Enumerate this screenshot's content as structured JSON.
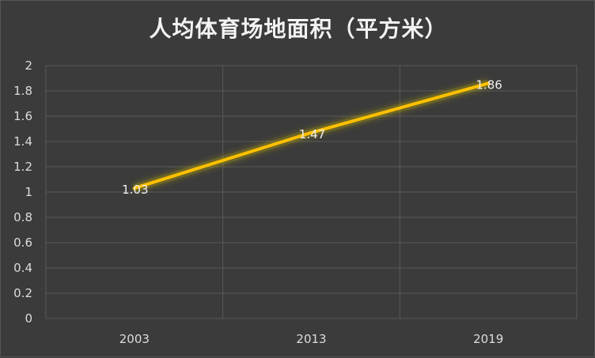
{
  "chart_data": {
    "type": "line",
    "title": "人均体育场地面积（平方米）",
    "xlabel": "",
    "ylabel": "",
    "categories": [
      "2003",
      "2013",
      "2019"
    ],
    "series": [
      {
        "values": [
          1.03,
          1.47,
          1.86
        ],
        "data_labels": [
          "1.03",
          "1.47",
          "1.86"
        ]
      }
    ],
    "ylim": [
      0,
      2
    ],
    "yticks": [
      "0",
      "0.2",
      "0.4",
      "0.6",
      "0.8",
      "1",
      "1.2",
      "1.4",
      "1.6",
      "1.8",
      "2"
    ],
    "grid": true,
    "legend": "none",
    "colors": {
      "background": "#3b3b3b",
      "grid": "#5a5a5a",
      "line": "#ffc000",
      "glow": "#c8b400"
    }
  }
}
